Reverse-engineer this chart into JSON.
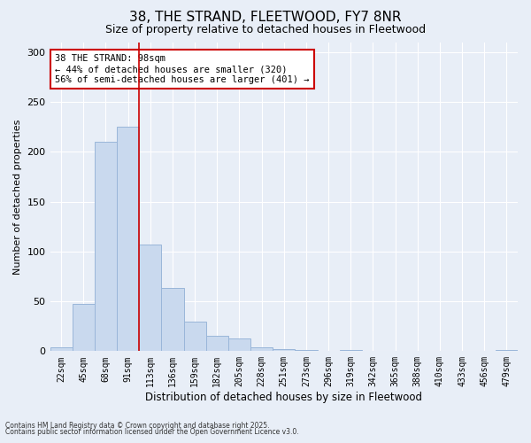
{
  "title": "38, THE STRAND, FLEETWOOD, FY7 8NR",
  "subtitle": "Size of property relative to detached houses in Fleetwood",
  "xlabel": "Distribution of detached houses by size in Fleetwood",
  "ylabel": "Number of detached properties",
  "bar_color": "#c9d9ee",
  "bar_edge_color": "#9ab6d9",
  "background_color": "#e8eef7",
  "grid_color": "#ffffff",
  "categories": [
    "22sqm",
    "45sqm",
    "68sqm",
    "91sqm",
    "113sqm",
    "136sqm",
    "159sqm",
    "182sqm",
    "205sqm",
    "228sqm",
    "251sqm",
    "273sqm",
    "296sqm",
    "319sqm",
    "342sqm",
    "365sqm",
    "388sqm",
    "410sqm",
    "433sqm",
    "456sqm",
    "479sqm"
  ],
  "values": [
    4,
    47,
    210,
    225,
    107,
    63,
    30,
    15,
    13,
    4,
    2,
    1,
    0,
    1,
    0,
    0,
    0,
    0,
    0,
    0,
    1
  ],
  "vline_x": 3.5,
  "annotation_text": "38 THE STRAND: 98sqm\n← 44% of detached houses are smaller (320)\n56% of semi-detached houses are larger (401) →",
  "ylim": [
    0,
    310
  ],
  "yticks": [
    0,
    50,
    100,
    150,
    200,
    250,
    300
  ],
  "footnote1": "Contains HM Land Registry data © Crown copyright and database right 2025.",
  "footnote2": "Contains public sector information licensed under the Open Government Licence v3.0."
}
